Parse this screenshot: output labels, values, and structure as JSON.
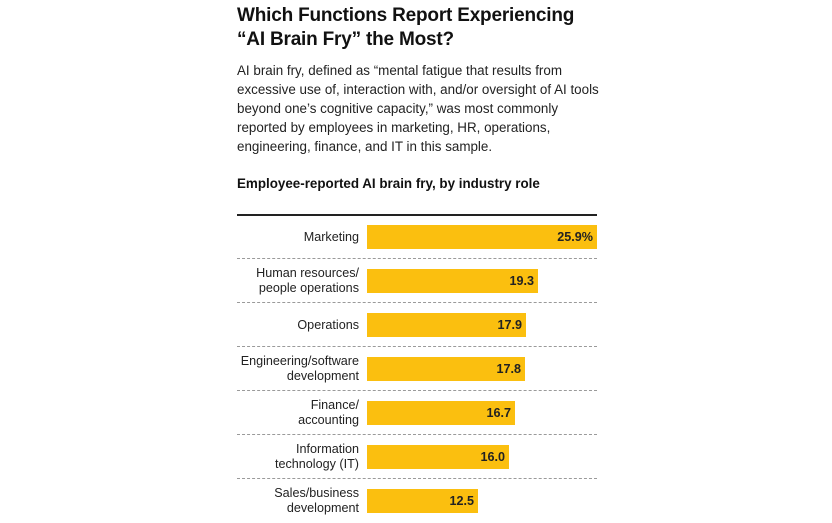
{
  "header": {
    "title_line1": "Which Functions Report Experiencing",
    "title_line2": "“AI Brain Fry” the Most?",
    "subtitle": "AI brain fry, defined as “mental fatigue that results from excessive use of, interaction with, and/or oversight of AI tools beyond one’s cognitive capacity,” was most commonly reported by employees in marketing, HR, operations, engineering, finance, and IT in this sample."
  },
  "chart_data": {
    "type": "bar",
    "orientation": "horizontal",
    "title": "Employee-reported AI brain fry, by industry role",
    "unit": "%",
    "categories": [
      [
        "Marketing"
      ],
      [
        "Human resources/",
        "people operations"
      ],
      [
        "Operations"
      ],
      [
        "Engineering/software",
        "development"
      ],
      [
        "Finance/",
        "accounting"
      ],
      [
        "Information",
        "technology (IT)"
      ],
      [
        "Sales/business",
        "development"
      ]
    ],
    "values": [
      25.9,
      19.3,
      17.9,
      17.8,
      16.7,
      16.0,
      12.5
    ],
    "value_labels": [
      "25.9%",
      "19.3",
      "17.9",
      "17.8",
      "16.7",
      "16.0",
      "12.5"
    ],
    "xlim": [
      0,
      25.9
    ],
    "bar_color": "#fbbf0f"
  }
}
